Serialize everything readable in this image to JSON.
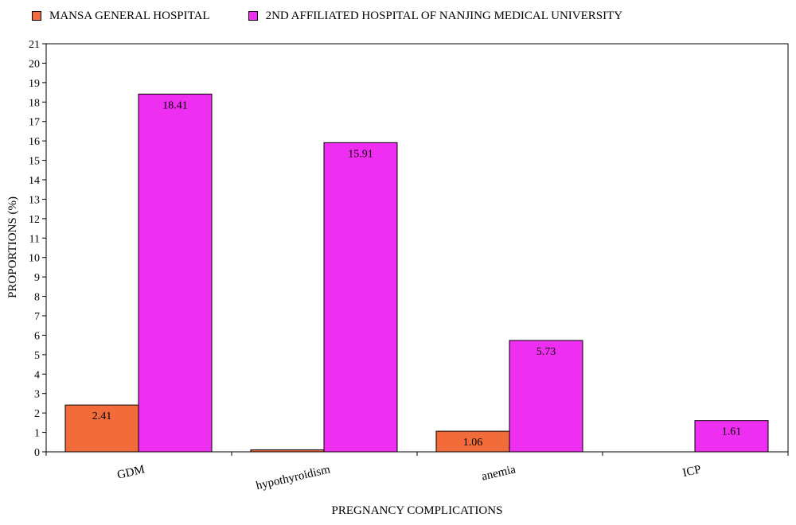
{
  "chart_data": {
    "type": "bar",
    "categories": [
      "GDM",
      "hypothyroidism",
      "anemia",
      "ICP"
    ],
    "series": [
      {
        "name": "MANSA GENERAL HOSPITAL",
        "color": "#F26B3A",
        "values": [
          2.41,
          0.1,
          1.06,
          0.0
        ],
        "labels": [
          "2.41",
          "",
          "1.06",
          ""
        ]
      },
      {
        "name": "2ND AFFILIATED HOSPITAL OF NANJING MEDICAL UNIVERSITY",
        "color": "#EE2EF0",
        "values": [
          18.41,
          15.91,
          5.73,
          1.61
        ],
        "labels": [
          "18.41",
          "15.91",
          "5.73",
          "1.61"
        ]
      }
    ],
    "xlabel": "PREGNANCY COMPLICATIONS",
    "ylabel": "PROPORTIONS (%)",
    "ylim": [
      0,
      21
    ],
    "yticks": [
      "0",
      "1",
      "2",
      "3",
      "4",
      "5",
      "6",
      "7",
      "8",
      "9",
      "10",
      "11",
      "12",
      "13",
      "14",
      "15",
      "16",
      "17",
      "18",
      "19",
      "20",
      "21"
    ],
    "grid": false,
    "legend": "top-left"
  }
}
